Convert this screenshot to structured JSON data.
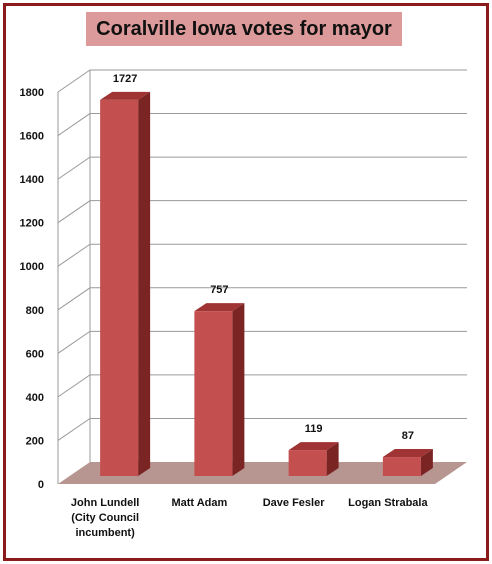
{
  "chart_data": {
    "type": "bar",
    "title": "Coralville Iowa votes for mayor",
    "categories": [
      [
        "John Lundell",
        "(City Council",
        "incumbent)"
      ],
      [
        "Matt Adam"
      ],
      [
        "Dave Fesler"
      ],
      [
        "Logan Strabala"
      ]
    ],
    "values": [
      1727,
      757,
      119,
      87
    ],
    "data_labels": [
      "1727",
      "757",
      "119",
      "87"
    ],
    "ylim": [
      0,
      1800
    ],
    "yticks": [
      0,
      200,
      400,
      600,
      800,
      1000,
      1200,
      1400,
      1600,
      1800
    ],
    "grid": true,
    "legend": "none",
    "style": "3d-column",
    "colors": {
      "bar_front": "#c44f4f",
      "bar_top": "#a03434",
      "bar_side": "#7a2424",
      "floor": "#b79590",
      "frame": "#8b1a1a",
      "title_bg": "#dd9a9a",
      "grid": "#9a9a9a"
    }
  }
}
